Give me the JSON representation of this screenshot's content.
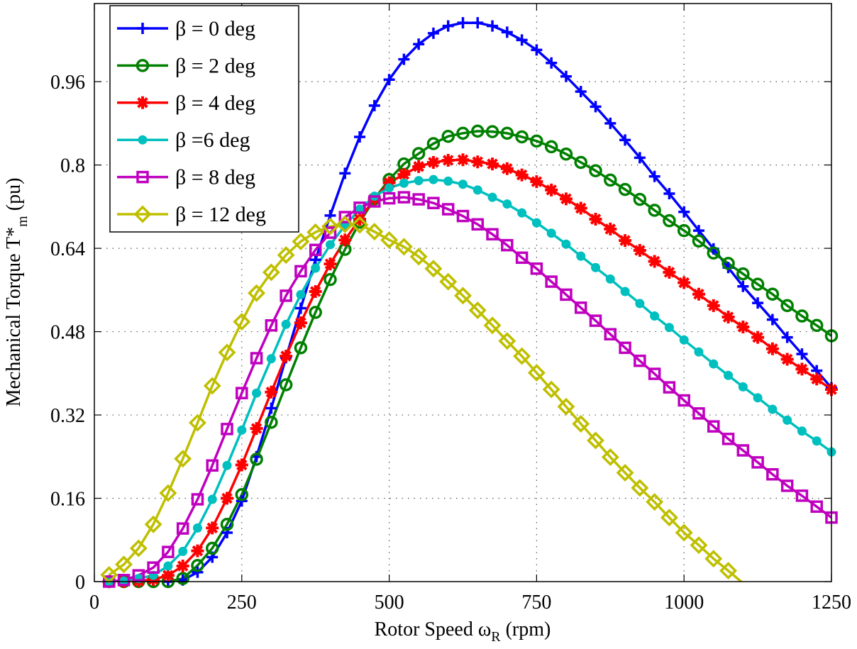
{
  "chart_data": {
    "type": "line",
    "title": "",
    "xlabel": {
      "main": "Rotor Speed ω",
      "sub": "R",
      "tail": " (rpm)"
    },
    "ylabel": {
      "main": "Mechanical Torque T*",
      "sub": "m",
      "tail": " (pu)"
    },
    "xlim": [
      0,
      1250
    ],
    "ylim": [
      0,
      1.11
    ],
    "xticks": [
      0,
      250,
      500,
      750,
      1000,
      1250
    ],
    "xtick_labels": [
      "0",
      "250",
      "500",
      "750",
      "1000",
      "1250"
    ],
    "yticks": [
      0,
      0.16,
      0.32,
      0.48,
      0.64,
      0.8,
      0.96
    ],
    "ytick_labels": [
      "0",
      "0.16",
      "0.32",
      "0.48",
      "0.64",
      "0.8",
      "0.96"
    ],
    "grid": true,
    "legend_position": "top-left",
    "x": [
      25,
      50,
      75,
      100,
      125,
      150,
      175,
      200,
      225,
      250,
      275,
      300,
      325,
      350,
      375,
      400,
      425,
      450,
      475,
      500,
      525,
      550,
      575,
      600,
      625,
      650,
      675,
      700,
      725,
      750,
      775,
      800,
      825,
      850,
      875,
      900,
      925,
      950,
      975,
      1000,
      1025,
      1050,
      1075,
      1100,
      1125,
      1150,
      1175,
      1200,
      1225,
      1250
    ],
    "series": [
      {
        "name": "β = 0 deg",
        "color": "#0000ff",
        "marker": "plus",
        "values": [
          0,
          0,
          0,
          0,
          0,
          0.003,
          0.018,
          0.047,
          0.094,
          0.155,
          0.24,
          0.333,
          0.43,
          0.525,
          0.618,
          0.703,
          0.784,
          0.854,
          0.914,
          0.964,
          1.003,
          1.032,
          1.053,
          1.067,
          1.073,
          1.073,
          1.067,
          1.055,
          1.04,
          1.021,
          0.996,
          0.97,
          0.941,
          0.912,
          0.88,
          0.848,
          0.814,
          0.778,
          0.745,
          0.71,
          0.674,
          0.639,
          0.603,
          0.567,
          0.535,
          0.503,
          0.469,
          0.437,
          0.405,
          0.372
        ]
      },
      {
        "name": "β = 2 deg",
        "color": "#008000",
        "marker": "circle-open",
        "values": [
          0,
          0,
          0,
          0,
          0,
          0.006,
          0.031,
          0.064,
          0.11,
          0.167,
          0.235,
          0.306,
          0.378,
          0.449,
          0.517,
          0.58,
          0.638,
          0.69,
          0.735,
          0.772,
          0.802,
          0.822,
          0.841,
          0.855,
          0.861,
          0.865,
          0.864,
          0.861,
          0.854,
          0.846,
          0.835,
          0.821,
          0.805,
          0.789,
          0.771,
          0.753,
          0.734,
          0.713,
          0.693,
          0.674,
          0.654,
          0.631,
          0.611,
          0.591,
          0.571,
          0.552,
          0.53,
          0.51,
          0.492,
          0.472
        ]
      },
      {
        "name": "β = 4 deg",
        "color": "#ff0000",
        "marker": "asterisk",
        "values": [
          0,
          0,
          0.001,
          0.004,
          0.012,
          0.03,
          0.059,
          0.103,
          0.16,
          0.224,
          0.294,
          0.364,
          0.433,
          0.497,
          0.557,
          0.61,
          0.656,
          0.696,
          0.735,
          0.766,
          0.782,
          0.797,
          0.805,
          0.809,
          0.81,
          0.806,
          0.802,
          0.793,
          0.781,
          0.768,
          0.752,
          0.735,
          0.717,
          0.696,
          0.677,
          0.655,
          0.636,
          0.615,
          0.594,
          0.574,
          0.552,
          0.53,
          0.508,
          0.489,
          0.469,
          0.447,
          0.427,
          0.408,
          0.389,
          0.369
        ]
      },
      {
        "name": "β =6 deg",
        "color": "#00bfbf",
        "marker": "dot",
        "values": [
          0,
          0.001,
          0.006,
          0.012,
          0.03,
          0.058,
          0.103,
          0.158,
          0.223,
          0.291,
          0.362,
          0.428,
          0.494,
          0.551,
          0.602,
          0.647,
          0.684,
          0.715,
          0.74,
          0.756,
          0.765,
          0.77,
          0.772,
          0.769,
          0.763,
          0.752,
          0.738,
          0.725,
          0.708,
          0.689,
          0.669,
          0.648,
          0.625,
          0.603,
          0.581,
          0.557,
          0.534,
          0.51,
          0.488,
          0.464,
          0.441,
          0.418,
          0.396,
          0.374,
          0.353,
          0.331,
          0.31,
          0.289,
          0.27,
          0.249
        ]
      },
      {
        "name": "β = 8 deg",
        "color": "#bf00bf",
        "marker": "square",
        "values": [
          0,
          0.003,
          0.012,
          0.027,
          0.057,
          0.102,
          0.158,
          0.223,
          0.293,
          0.362,
          0.429,
          0.492,
          0.549,
          0.596,
          0.637,
          0.67,
          0.7,
          0.718,
          0.73,
          0.736,
          0.738,
          0.734,
          0.727,
          0.715,
          0.702,
          0.686,
          0.667,
          0.646,
          0.622,
          0.601,
          0.576,
          0.551,
          0.526,
          0.501,
          0.475,
          0.449,
          0.424,
          0.399,
          0.373,
          0.348,
          0.323,
          0.298,
          0.274,
          0.252,
          0.229,
          0.206,
          0.184,
          0.165,
          0.144,
          0.123
        ]
      },
      {
        "name": "β = 12 deg",
        "color": "#bfbf00",
        "marker": "diamond",
        "values": [
          0.013,
          0.033,
          0.064,
          0.11,
          0.17,
          0.236,
          0.305,
          0.376,
          0.44,
          0.499,
          0.554,
          0.594,
          0.627,
          0.653,
          0.671,
          0.682,
          0.686,
          0.685,
          0.672,
          0.656,
          0.643,
          0.624,
          0.601,
          0.576,
          0.549,
          0.521,
          0.492,
          0.462,
          0.433,
          0.401,
          0.369,
          0.336,
          0.303,
          0.271,
          0.239,
          0.209,
          0.18,
          0.153,
          0.123,
          0.094,
          0.07,
          0.044,
          0.021,
          -0.003,
          null,
          null,
          null,
          null,
          null,
          null
        ]
      }
    ]
  }
}
